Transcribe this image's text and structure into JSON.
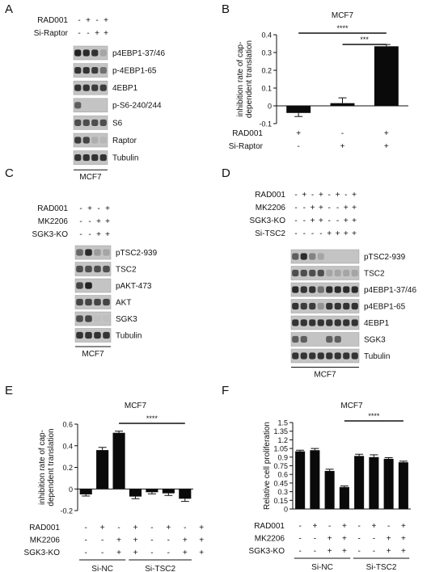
{
  "panels": {
    "A": {
      "letter": "A",
      "rows": [
        "RAD001",
        "Si-Raptor"
      ],
      "signs": [
        [
          "-",
          "+",
          "-",
          "+"
        ],
        [
          "-",
          "-",
          "+",
          "+"
        ]
      ],
      "blots": [
        "p4EBP1-37/46",
        "p-4EBP1-65",
        "4EBP1",
        "p-S6-240/244",
        "S6",
        "Raptor",
        "Tubulin"
      ],
      "cell_line": "MCF7"
    },
    "B": {
      "letter": "B"
    },
    "C": {
      "letter": "C",
      "rows": [
        "RAD001",
        "MK2206",
        "SGK3-KO"
      ],
      "signs": [
        [
          "-",
          "+",
          "-",
          "+"
        ],
        [
          "-",
          "-",
          "+",
          "+"
        ],
        [
          "-",
          "-",
          "+",
          "+"
        ]
      ],
      "blots": [
        "pTSC2-939",
        "TSC2",
        "pAKT-473",
        "AKT",
        "SGK3",
        "Tubulin"
      ],
      "cell_line": "MCF7"
    },
    "D": {
      "letter": "D",
      "rows": [
        "RAD001",
        "MK2206",
        "SGK3-KO",
        "Si-TSC2"
      ],
      "signs": [
        [
          "-",
          "+",
          "-",
          "+",
          "-",
          "+",
          "-",
          "+"
        ],
        [
          "-",
          "-",
          "+",
          "+",
          "-",
          "-",
          "+",
          "+"
        ],
        [
          "-",
          "-",
          "+",
          "+",
          "-",
          "-",
          "+",
          "+"
        ],
        [
          "-",
          "-",
          "-",
          "-",
          "+",
          "+",
          "+",
          "+"
        ]
      ],
      "blots": [
        "pTSC2-939",
        "TSC2",
        "p4EBP1-37/46",
        "p4EBP1-65",
        "4EBP1",
        "SGK3",
        "Tubulin"
      ],
      "cell_line": "MCF7"
    },
    "E": {
      "letter": "E",
      "rows": [
        "RAD001",
        "MK2206",
        "SGK3-KO"
      ],
      "signs": [
        [
          "-",
          "+",
          "-",
          "+",
          "-",
          "+",
          "-",
          "+"
        ],
        [
          "-",
          "-",
          "+",
          "+",
          "-",
          "-",
          "+",
          "+"
        ],
        [
          "-",
          "-",
          "+",
          "+",
          "-",
          "-",
          "+",
          "+"
        ]
      ],
      "groups": [
        "Si-NC",
        "Si-TSC2"
      ]
    },
    "F": {
      "letter": "F",
      "rows": [
        "RAD001",
        "MK2206",
        "SGK3-KO"
      ],
      "signs": [
        [
          "-",
          "+",
          "-",
          "+",
          "-",
          "+",
          "-",
          "+"
        ],
        [
          "-",
          "-",
          "+",
          "+",
          "-",
          "-",
          "+",
          "+"
        ],
        [
          "-",
          "-",
          "+",
          "+",
          "-",
          "-",
          "+",
          "+"
        ]
      ],
      "groups": [
        "Si-NC",
        "Si-TSC2"
      ]
    }
  },
  "chart_data": [
    {
      "id": "B",
      "type": "bar",
      "title": "MCF7",
      "ylabel": "inhibition rate of cap-dependent translation",
      "rows": [
        "RAD001",
        "Si-Raptor"
      ],
      "signs": [
        [
          "+",
          "-",
          "+"
        ],
        [
          "-",
          "+",
          "+"
        ]
      ],
      "values": [
        -0.04,
        0.015,
        0.335
      ],
      "errors": [
        0.02,
        0.03,
        0.01
      ],
      "ylim": [
        -0.1,
        0.4
      ],
      "yticks": [
        -0.1,
        0,
        0.1,
        0.2,
        0.3,
        0.4
      ],
      "significance": [
        {
          "from": 0,
          "to": 2,
          "label": "****"
        },
        {
          "from": 1,
          "to": 2,
          "label": "***"
        }
      ]
    },
    {
      "id": "E",
      "type": "bar",
      "title": "MCF7",
      "ylabel": "inhibition rate of cap-dependent translation",
      "values": [
        -0.05,
        0.36,
        0.52,
        -0.07,
        -0.03,
        -0.04,
        -0.09
      ],
      "errors": [
        0.015,
        0.025,
        0.015,
        0.02,
        0.015,
        0.02,
        0.025
      ],
      "ylim": [
        -0.2,
        0.6
      ],
      "yticks": [
        -0.2,
        0,
        0.2,
        0.4,
        0.6
      ],
      "significance": [
        {
          "from": 2,
          "to": 6,
          "label": "****"
        }
      ]
    },
    {
      "id": "F",
      "type": "bar",
      "title": "MCF7",
      "ylabel": "Relative cell proliferation",
      "values": [
        1.0,
        1.02,
        0.66,
        0.38,
        0.92,
        0.9,
        0.87,
        0.81
      ],
      "errors": [
        0.02,
        0.03,
        0.03,
        0.02,
        0.03,
        0.04,
        0.02,
        0.02
      ],
      "ylim": [
        0,
        1.5
      ],
      "yticks": [
        0,
        0.15,
        0.3,
        0.45,
        0.6,
        0.75,
        0.9,
        1.05,
        1.2,
        1.35,
        1.5
      ],
      "significance": [
        {
          "from": 3,
          "to": 7,
          "label": "****"
        }
      ]
    }
  ]
}
